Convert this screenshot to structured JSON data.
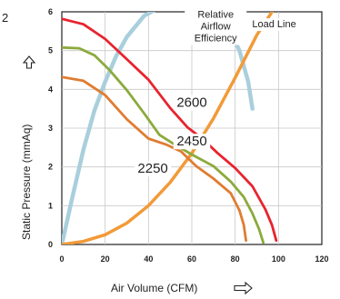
{
  "figure_number": "2",
  "chart_data": {
    "type": "line",
    "xlabel": "Air Volume (CFM)",
    "ylabel": "Static Pressure (mmAq)",
    "xlim": [
      0,
      120
    ],
    "ylim": [
      0,
      6
    ],
    "x_ticks": [
      "0",
      "20",
      "40",
      "60",
      "80",
      "100",
      "120"
    ],
    "y_ticks": [
      "0",
      "1",
      "2",
      "3",
      "4",
      "5",
      "6"
    ],
    "grid": true,
    "colors": {
      "rpm_2600": "#e8232e",
      "rpm_2450": "#8caa3c",
      "rpm_2250": "#e07c30",
      "load_line": "#f29a38",
      "efficiency": "#a9cfdc"
    },
    "series": [
      {
        "name": "2600",
        "key": "rpm_2600",
        "points": [
          [
            0,
            5.82
          ],
          [
            10,
            5.68
          ],
          [
            20,
            5.3
          ],
          [
            30,
            4.78
          ],
          [
            40,
            4.25
          ],
          [
            50,
            3.52
          ],
          [
            58,
            3.02
          ],
          [
            65,
            2.72
          ],
          [
            72,
            2.35
          ],
          [
            80,
            1.97
          ],
          [
            88,
            1.5
          ],
          [
            94,
            0.9
          ],
          [
            97,
            0.5
          ],
          [
            99,
            0.1
          ]
        ]
      },
      {
        "name": "2450",
        "key": "rpm_2450",
        "points": [
          [
            0,
            5.08
          ],
          [
            8,
            5.06
          ],
          [
            15,
            4.88
          ],
          [
            22,
            4.5
          ],
          [
            30,
            3.98
          ],
          [
            38,
            3.38
          ],
          [
            45,
            2.83
          ],
          [
            52,
            2.58
          ],
          [
            60,
            2.32
          ],
          [
            70,
            2.02
          ],
          [
            78,
            1.62
          ],
          [
            84,
            1.22
          ],
          [
            88,
            0.8
          ],
          [
            91,
            0.4
          ],
          [
            93,
            0.05
          ]
        ]
      },
      {
        "name": "2250",
        "key": "rpm_2250",
        "points": [
          [
            0,
            4.32
          ],
          [
            10,
            4.22
          ],
          [
            20,
            3.85
          ],
          [
            30,
            3.23
          ],
          [
            40,
            2.73
          ],
          [
            48,
            2.58
          ],
          [
            55,
            2.4
          ],
          [
            62,
            2.02
          ],
          [
            70,
            1.7
          ],
          [
            78,
            1.32
          ],
          [
            82,
            0.88
          ],
          [
            84,
            0.5
          ],
          [
            85,
            0.1
          ]
        ]
      },
      {
        "name": "Load Line",
        "key": "load_line",
        "points": [
          [
            0,
            0
          ],
          [
            10,
            0.08
          ],
          [
            20,
            0.25
          ],
          [
            30,
            0.55
          ],
          [
            40,
            1.0
          ],
          [
            50,
            1.6
          ],
          [
            60,
            2.35
          ],
          [
            70,
            3.25
          ],
          [
            80,
            4.3
          ],
          [
            90,
            5.4
          ],
          [
            97,
            6.0
          ]
        ]
      },
      {
        "name": "Relative Airflow Efficiency",
        "key": "efficiency",
        "points": [
          [
            0,
            0
          ],
          [
            5,
            1.25
          ],
          [
            10,
            2.45
          ],
          [
            15,
            3.45
          ],
          [
            20,
            4.2
          ],
          [
            25,
            4.85
          ],
          [
            30,
            5.35
          ],
          [
            38,
            5.9
          ],
          [
            48,
            6.2
          ],
          [
            58,
            6.25
          ],
          [
            68,
            6.1
          ],
          [
            76,
            5.7
          ],
          [
            82,
            5.0
          ],
          [
            86,
            4.2
          ],
          [
            88,
            3.5
          ]
        ]
      }
    ],
    "annotations": [
      {
        "key": "efficiency_label",
        "lines": [
          "Relative",
          "Airflow",
          "Efficiency"
        ],
        "x": 71,
        "y": 5.85
      },
      {
        "key": "load_label",
        "lines": [
          "Load Line"
        ],
        "x": 98,
        "y": 5.6
      },
      {
        "key": "rpm_2600_label",
        "lines": [
          "2600"
        ],
        "x": 60,
        "y": 3.55
      },
      {
        "key": "rpm_2450_label",
        "lines": [
          "2450"
        ],
        "x": 60,
        "y": 2.55
      },
      {
        "key": "rpm_2250_label",
        "lines": [
          "2250"
        ],
        "x": 42,
        "y": 1.85
      }
    ]
  }
}
